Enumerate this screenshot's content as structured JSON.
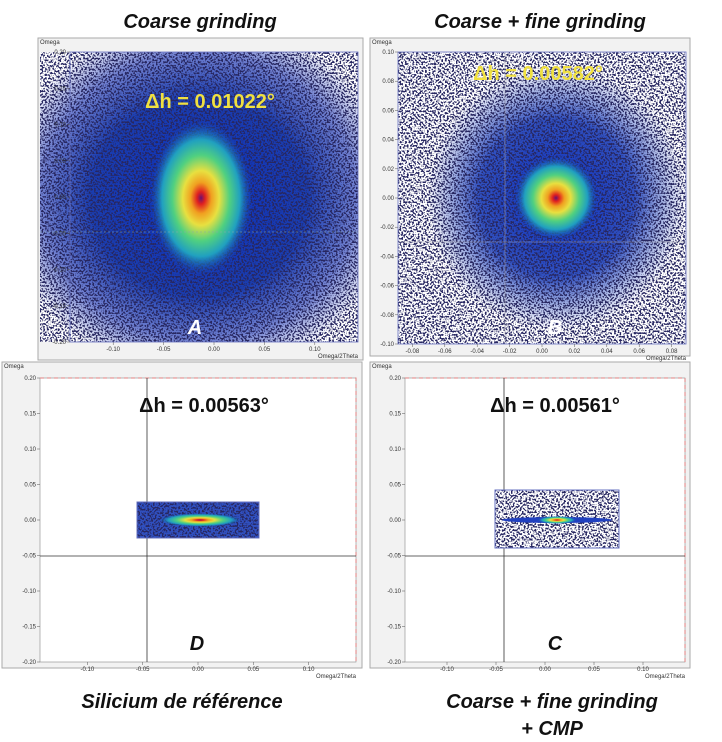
{
  "panels": [
    {
      "title": "Coarse grinding",
      "delta": "Δh = 0.01022°",
      "letter": "A",
      "y_label": "Omega",
      "x_label": "Omega/2Theta",
      "yticks": [
        "0.20",
        "0.15",
        "0.10",
        "0.05",
        "0.00",
        "-0.05",
        "-0.10",
        "-0.15",
        "-0.20"
      ],
      "xticks": [
        "-0.10",
        "-0.05",
        "0.00",
        "0.05",
        "0.10"
      ]
    },
    {
      "title": "Coarse + fine grinding",
      "delta": "Δh = 0.00582°",
      "letter": "B",
      "y_label": "Omega",
      "x_label": "Omega/2Theta",
      "yticks": [
        "0.10",
        "0.08",
        "0.06",
        "0.04",
        "0.02",
        "0.00",
        "-0.02",
        "-0.04",
        "-0.06",
        "-0.08",
        "-0.10"
      ],
      "xticks": [
        "-0.08",
        "-0.06",
        "-0.04",
        "-0.02",
        "0.00",
        "0.02",
        "0.04",
        "0.06",
        "0.08"
      ]
    },
    {
      "caption": [
        "Silicium de référence"
      ],
      "delta": "Δh = 0.00563°",
      "letter": "D",
      "y_label": "Omega",
      "x_label": "Omega/2Theta",
      "yticks": [
        "0.20",
        "0.15",
        "0.10",
        "0.05",
        "0.00",
        "-0.05",
        "-0.10",
        "-0.15",
        "-0.20"
      ],
      "xticks": [
        "-0.10",
        "-0.05",
        "0.00",
        "0.05",
        "0.10"
      ]
    },
    {
      "caption": [
        "Coarse + fine grinding",
        "+ CMP"
      ],
      "delta": "Δh = 0.00561°",
      "letter": "C",
      "y_label": "Omega",
      "x_label": "Omega/2Theta",
      "yticks": [
        "0.20",
        "0.15",
        "0.10",
        "0.05",
        "0.00",
        "-0.05",
        "-0.10",
        "-0.15",
        "-0.20"
      ],
      "xticks": [
        "-0.10",
        "-0.05",
        "0.00",
        "0.05",
        "0.10"
      ]
    }
  ]
}
